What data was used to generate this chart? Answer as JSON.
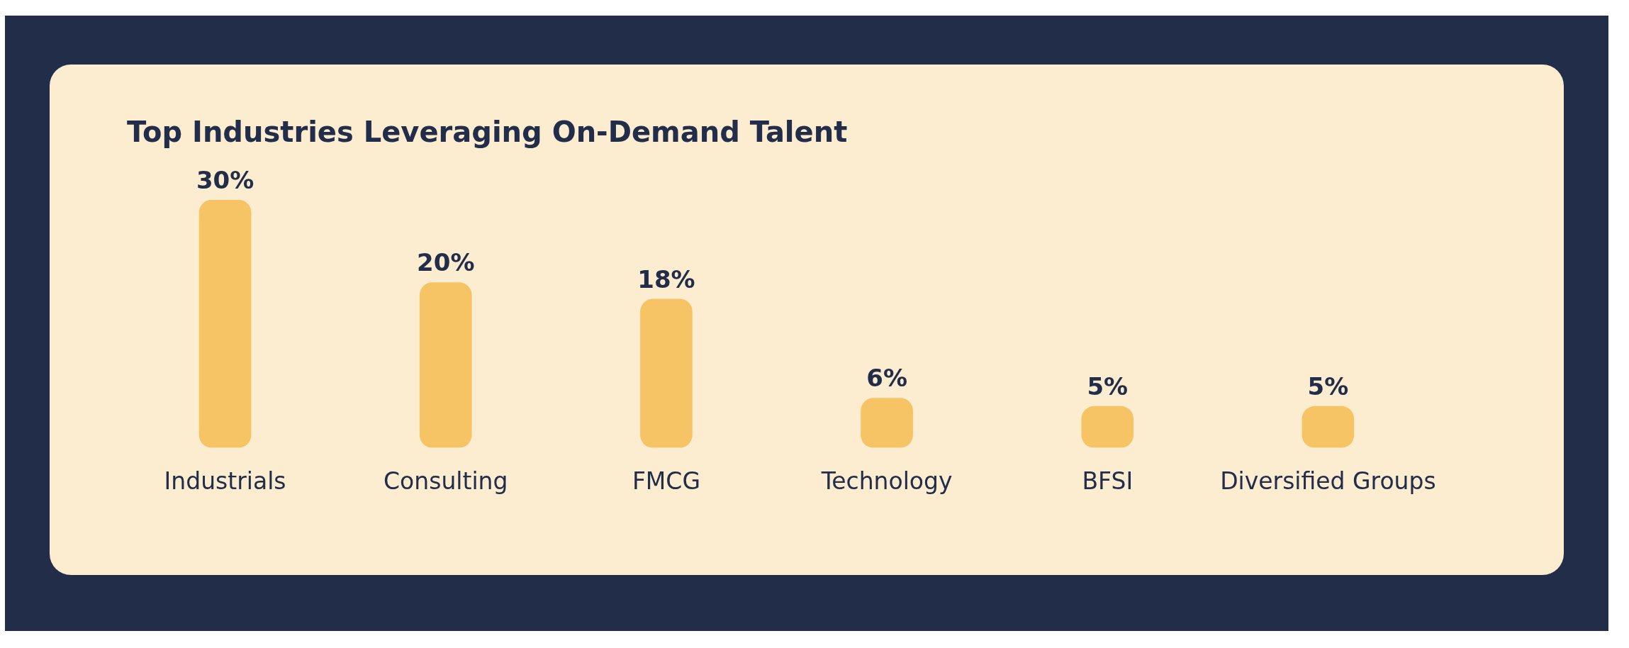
{
  "chart_data": {
    "type": "bar",
    "title": "Top Industries Leveraging On-Demand Talent",
    "categories": [
      "Industrials",
      "Consulting",
      "FMCG",
      "Technology",
      "BFSI",
      "Diversified Groups"
    ],
    "values": [
      30,
      20,
      18,
      6,
      5,
      5
    ],
    "value_labels": [
      "30%",
      "20%",
      "18%",
      "6%",
      "5%",
      "5%"
    ],
    "color": "#f6c465",
    "grid": false,
    "legend": false,
    "tick_labels": "x"
  }
}
